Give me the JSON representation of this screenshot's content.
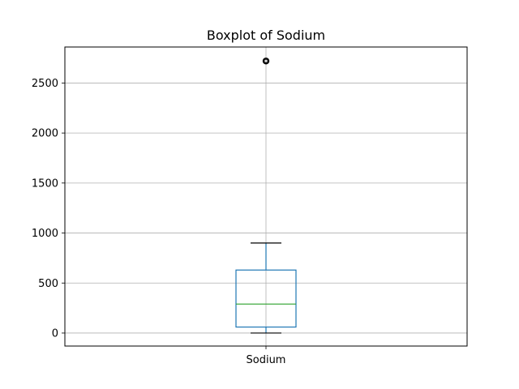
{
  "chart_data": {
    "type": "box",
    "title": "Boxplot of Sodium",
    "xlabel": "",
    "ylabel": "",
    "categories": [
      "Sodium"
    ],
    "ylim": [
      -130,
      2860
    ],
    "yticks": [
      0,
      500,
      1000,
      1500,
      2000,
      2500
    ],
    "grid": true,
    "boxes": [
      {
        "category": "Sodium",
        "whisker_low": 0,
        "q1": 60,
        "median": 290,
        "q3": 630,
        "whisker_high": 900,
        "outliers": [
          2720
        ]
      }
    ],
    "colors": {
      "box": "#1f77b4",
      "median": "#2ca02c",
      "whisker": "#000000",
      "grid": "#b0b0b0",
      "outlier": "#000000"
    }
  }
}
